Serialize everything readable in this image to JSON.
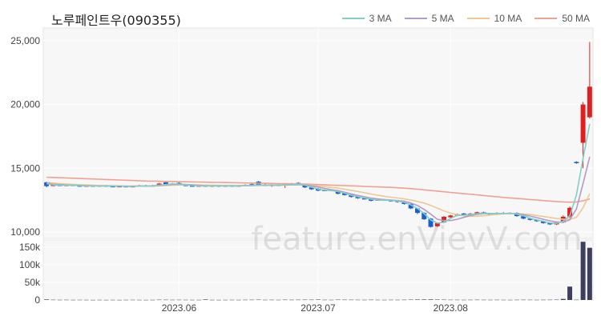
{
  "title": "노루페인트우(090355)",
  "legend": [
    {
      "label": "3 MA",
      "color": "#7fd0c8"
    },
    {
      "label": "5 MA",
      "color": "#b59ac8"
    },
    {
      "label": "10 MA",
      "color": "#f0c890"
    },
    {
      "label": "50 MA",
      "color": "#f0a090"
    }
  ],
  "watermark": "feature.enVievV.com",
  "colors": {
    "up": "#e02020",
    "down": "#1a5fd0",
    "volume": "#3e3e5e"
  },
  "chart_data": {
    "type": "candlestick",
    "price_axis": {
      "ylim": [
        9500,
        26000
      ],
      "ticks": [
        "25,000",
        "20,000",
        "15,000",
        "10,000"
      ],
      "tick_values": [
        25000,
        20000,
        15000,
        10000
      ]
    },
    "volume_axis": {
      "ylim": [
        0,
        170000
      ],
      "ticks": [
        "150k",
        "100k",
        "50k",
        "0"
      ],
      "tick_values": [
        150000,
        100000,
        50000,
        0
      ]
    },
    "x_ticks": [
      {
        "label": "2023.06",
        "index": 20
      },
      {
        "label": "2023.07",
        "index": 41
      },
      {
        "label": "2023.08",
        "index": 61
      }
    ],
    "candles": [
      [
        13900,
        13600,
        13950,
        13500,
        1500
      ],
      [
        13650,
        13700,
        13750,
        13600,
        800
      ],
      [
        13700,
        13650,
        13750,
        13600,
        600
      ],
      [
        13650,
        13700,
        13720,
        13600,
        700
      ],
      [
        13700,
        13650,
        13750,
        13600,
        500
      ],
      [
        13650,
        13600,
        13700,
        13550,
        600
      ],
      [
        13600,
        13650,
        13700,
        13550,
        500
      ],
      [
        13650,
        13600,
        13700,
        13550,
        400
      ],
      [
        13600,
        13650,
        13680,
        13550,
        500
      ],
      [
        13650,
        13600,
        13700,
        13550,
        400
      ],
      [
        13600,
        13580,
        13650,
        13550,
        500
      ],
      [
        13580,
        13600,
        13650,
        13550,
        400
      ],
      [
        13600,
        13550,
        13650,
        13500,
        500
      ],
      [
        13550,
        13600,
        13650,
        13500,
        600
      ],
      [
        13600,
        13650,
        13700,
        13550,
        500
      ],
      [
        13650,
        13600,
        13700,
        13550,
        400
      ],
      [
        13600,
        13650,
        13700,
        13550,
        500
      ],
      [
        13650,
        13800,
        13850,
        13600,
        900
      ],
      [
        13900,
        13750,
        13950,
        13700,
        800
      ],
      [
        13750,
        13800,
        13850,
        13700,
        600
      ],
      [
        13850,
        13700,
        13900,
        13650,
        700
      ],
      [
        13700,
        13650,
        13750,
        13600,
        600
      ],
      [
        13650,
        13600,
        13700,
        13550,
        500
      ],
      [
        13600,
        13650,
        13700,
        13550,
        500
      ],
      [
        13650,
        13600,
        13700,
        13550,
        1500
      ],
      [
        13600,
        13650,
        13700,
        13550,
        500
      ],
      [
        13650,
        13600,
        13700,
        13550,
        400
      ],
      [
        13600,
        13650,
        13700,
        13550,
        500
      ],
      [
        13650,
        13600,
        13700,
        13550,
        600
      ],
      [
        13600,
        13650,
        13700,
        13550,
        500
      ],
      [
        13650,
        13700,
        13750,
        13600,
        700
      ],
      [
        13750,
        13650,
        13800,
        13600,
        800
      ],
      [
        13950,
        13700,
        14000,
        13650,
        1000
      ],
      [
        13700,
        13650,
        13800,
        13600,
        600
      ],
      [
        13650,
        13700,
        13750,
        13550,
        700
      ],
      [
        13700,
        13650,
        13750,
        13600,
        600
      ],
      [
        13650,
        13750,
        13800,
        13450,
        900
      ],
      [
        13750,
        13800,
        13850,
        13700,
        700
      ],
      [
        13850,
        13700,
        13900,
        13650,
        800
      ],
      [
        13700,
        13500,
        13750,
        13450,
        1000
      ],
      [
        13500,
        13350,
        13550,
        13300,
        900
      ],
      [
        13400,
        13250,
        13450,
        13200,
        1200
      ],
      [
        13300,
        13250,
        13350,
        13200,
        700
      ],
      [
        13300,
        13250,
        13350,
        13200,
        600
      ],
      [
        13250,
        13000,
        13300,
        12950,
        1000
      ],
      [
        13050,
        12900,
        13100,
        12850,
        900
      ],
      [
        12950,
        12750,
        13000,
        12700,
        800
      ],
      [
        12800,
        12650,
        12850,
        12600,
        700
      ],
      [
        12650,
        12600,
        12700,
        12550,
        600
      ],
      [
        12600,
        12450,
        12700,
        12400,
        800
      ],
      [
        12500,
        12550,
        12600,
        12450,
        600
      ],
      [
        12550,
        12500,
        12600,
        12450,
        500
      ],
      [
        12500,
        12450,
        12550,
        12400,
        700
      ],
      [
        12450,
        12350,
        12500,
        12300,
        600
      ],
      [
        12400,
        12200,
        12450,
        12150,
        800
      ],
      [
        12200,
        11850,
        12250,
        11800,
        1100
      ],
      [
        11850,
        11500,
        11900,
        11400,
        1300
      ],
      [
        11500,
        11000,
        11550,
        10950,
        1400
      ],
      [
        11050,
        10400,
        11100,
        10350,
        1600
      ],
      [
        10450,
        10700,
        10750,
        10400,
        1200
      ],
      [
        10750,
        11200,
        11250,
        10700,
        1000
      ],
      [
        11150,
        11300,
        11350,
        11100,
        800
      ],
      [
        11300,
        11400,
        11450,
        11250,
        700
      ],
      [
        11450,
        11300,
        11500,
        11250,
        600
      ],
      [
        11300,
        11450,
        11500,
        11250,
        700
      ],
      [
        11450,
        11550,
        11600,
        11400,
        800
      ],
      [
        11550,
        11450,
        11600,
        11400,
        700
      ],
      [
        11450,
        11400,
        11500,
        11350,
        600
      ],
      [
        11400,
        11500,
        11550,
        11350,
        700
      ],
      [
        11500,
        11450,
        11550,
        11400,
        600
      ],
      [
        11450,
        11500,
        11550,
        11400,
        500
      ],
      [
        11500,
        11250,
        11550,
        11200,
        700
      ],
      [
        11250,
        11050,
        11300,
        11000,
        800
      ],
      [
        11050,
        10950,
        11100,
        10900,
        700
      ],
      [
        10950,
        10850,
        11000,
        10800,
        600
      ],
      [
        10850,
        10700,
        10900,
        10650,
        700
      ],
      [
        10700,
        10600,
        10750,
        10550,
        800
      ],
      [
        10600,
        10750,
        10800,
        10550,
        1000
      ],
      [
        10750,
        11200,
        11300,
        10700,
        3000
      ],
      [
        11200,
        11900,
        12000,
        11100,
        38000
      ],
      [
        15500,
        15400,
        15550,
        15350,
        800
      ],
      [
        17000,
        20000,
        20200,
        15000,
        165000
      ],
      [
        19000,
        21400,
        24900,
        18900,
        148000
      ]
    ],
    "ma3": [
      13800,
      13700,
      13680,
      13670,
      13670,
      13650,
      13630,
      13620,
      13620,
      13620,
      13600,
      13600,
      13580,
      13580,
      13600,
      13620,
      13620,
      13680,
      13720,
      13770,
      13760,
      13720,
      13660,
      13630,
      13620,
      13620,
      13630,
      13620,
      13630,
      13620,
      13650,
      13650,
      13690,
      13670,
      13670,
      13660,
      13700,
      13720,
      13750,
      13670,
      13520,
      13370,
      13280,
      13250,
      13170,
      13050,
      12880,
      12770,
      12670,
      12570,
      12520,
      12500,
      12500,
      12430,
      12330,
      12130,
      11850,
      11450,
      10950,
      10700,
      10770,
      11070,
      11300,
      11330,
      11380,
      11430,
      11480,
      11460,
      11450,
      11450,
      11480,
      11400,
      11270,
      11080,
      10950,
      10850,
      10720,
      10680,
      10850,
      11280,
      12900,
      15770,
      18470
    ],
    "ma5": [
      13850,
      13750,
      13720,
      13690,
      13680,
      13660,
      13640,
      13630,
      13620,
      13620,
      13610,
      13600,
      13590,
      13590,
      13600,
      13610,
      13620,
      13650,
      13690,
      13720,
      13740,
      13730,
      13700,
      13660,
      13640,
      13630,
      13630,
      13630,
      13630,
      13620,
      13640,
      13650,
      13670,
      13680,
      13680,
      13680,
      13690,
      13700,
      13720,
      13700,
      13620,
      13520,
      13420,
      13330,
      13240,
      13120,
      12990,
      12870,
      12760,
      12660,
      12590,
      12540,
      12510,
      12470,
      12410,
      12280,
      12080,
      11780,
      11400,
      11000,
      10900,
      10900,
      11000,
      11150,
      11300,
      11390,
      11430,
      11440,
      11450,
      11460,
      11460,
      11430,
      11360,
      11250,
      11130,
      11000,
      10880,
      10790,
      10770,
      10960,
      11800,
      13800,
      15900
    ],
    "ma10": [
      13900,
      13850,
      13800,
      13760,
      13730,
      13710,
      13690,
      13670,
      13650,
      13640,
      13630,
      13620,
      13610,
      13610,
      13600,
      13610,
      13610,
      13630,
      13650,
      13670,
      13690,
      13700,
      13700,
      13690,
      13680,
      13670,
      13660,
      13650,
      13650,
      13640,
      13640,
      13640,
      13650,
      13660,
      13660,
      13670,
      13680,
      13690,
      13700,
      13690,
      13660,
      13610,
      13560,
      13500,
      13440,
      13360,
      13270,
      13180,
      13080,
      12980,
      12880,
      12800,
      12730,
      12670,
      12600,
      12510,
      12400,
      12270,
      12090,
      11870,
      11660,
      11480,
      11360,
      11280,
      11240,
      11240,
      11270,
      11330,
      11380,
      11420,
      11440,
      11440,
      11420,
      11370,
      11300,
      11220,
      11140,
      11060,
      11000,
      11000,
      11150,
      11900,
      13000
    ],
    "ma50": [
      14300,
      14280,
      14260,
      14240,
      14220,
      14200,
      14180,
      14160,
      14140,
      14120,
      14100,
      14080,
      14060,
      14040,
      14020,
      14000,
      13990,
      13980,
      13970,
      13960,
      13950,
      13940,
      13930,
      13920,
      13910,
      13900,
      13890,
      13880,
      13870,
      13860,
      13850,
      13840,
      13830,
      13820,
      13810,
      13800,
      13790,
      13780,
      13770,
      13760,
      13740,
      13720,
      13700,
      13680,
      13660,
      13640,
      13620,
      13600,
      13580,
      13560,
      13540,
      13520,
      13500,
      13470,
      13440,
      13400,
      13360,
      13310,
      13260,
      13210,
      13160,
      13110,
      13060,
      13010,
      12960,
      12910,
      12860,
      12810,
      12760,
      12710,
      12670,
      12630,
      12590,
      12550,
      12510,
      12470,
      12430,
      12390,
      12360,
      12340,
      12360,
      12450,
      12600
    ]
  }
}
